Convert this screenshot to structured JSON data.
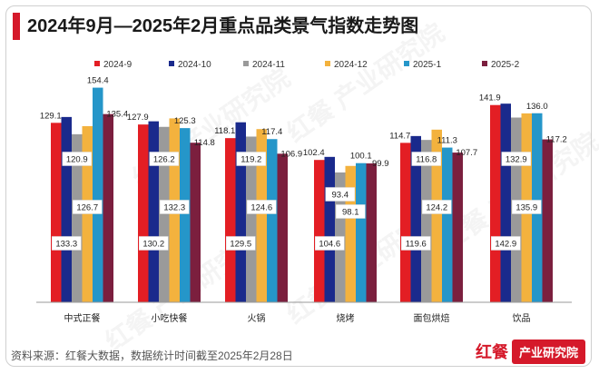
{
  "title": "2024年9月—2025年2月重点品类景气指数走势图",
  "source": "资料来源：红餐大数据，数据统计时间截至2025年2月28日",
  "brand": {
    "logo": "红餐",
    "name": "产业研究院"
  },
  "watermark": "红餐 产业研究院",
  "colors": [
    "#e31e24",
    "#1a2a8c",
    "#9a9a9a",
    "#f3b23e",
    "#2596c9",
    "#7b1f3e"
  ],
  "chart_data": {
    "type": "bar",
    "title": "2024年9月—2025年2月重点品类景气指数走势图",
    "categories": [
      "中式正餐",
      "小吃快餐",
      "火锅",
      "烧烤",
      "面包烘焙",
      "饮品"
    ],
    "series": [
      {
        "name": "2024-9",
        "values": [
          129.1,
          127.9,
          118.1,
          102.4,
          114.7,
          141.9
        ]
      },
      {
        "name": "2024-10",
        "values": [
          133.3,
          130.2,
          129.5,
          104.6,
          119.6,
          142.9
        ]
      },
      {
        "name": "2024-11",
        "values": [
          120.9,
          126.2,
          119.2,
          93.4,
          116.8,
          132.9
        ]
      },
      {
        "name": "2024-12",
        "values": [
          126.7,
          132.3,
          124.6,
          98.1,
          124.2,
          135.9
        ]
      },
      {
        "name": "2025-1",
        "values": [
          154.4,
          125.3,
          117.4,
          100.1,
          111.3,
          136.0
        ]
      },
      {
        "name": "2025-2",
        "values": [
          135.4,
          114.8,
          106.9,
          99.9,
          107.7,
          117.2
        ]
      }
    ],
    "xlabel": "",
    "ylabel": "",
    "ylim": [
      0,
      160
    ],
    "grid": false,
    "legend": "top"
  }
}
